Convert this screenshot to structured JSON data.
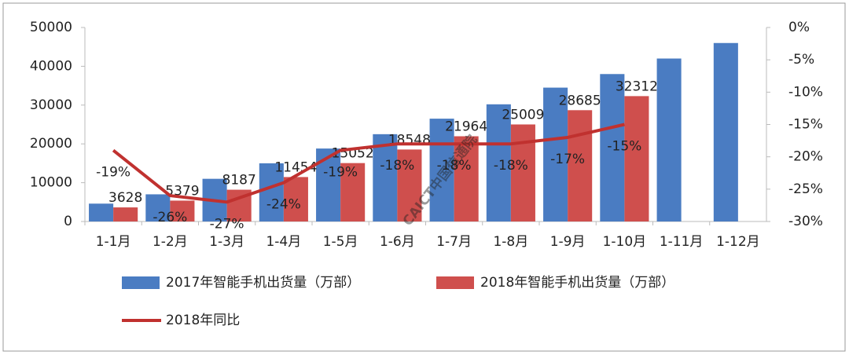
{
  "chart_data": {
    "type": "bar_line",
    "categories": [
      "1-1月",
      "1-2月",
      "1-3月",
      "1-4月",
      "1-5月",
      "1-6月",
      "1-7月",
      "1-8月",
      "1-9月",
      "1-10月",
      "1-11月",
      "1-12月"
    ],
    "series": [
      {
        "name": "2017年智能手机出货量（万部）",
        "color": "#4a7cc2",
        "values": [
          4600,
          7000,
          11000,
          15000,
          18800,
          22500,
          26500,
          30200,
          34500,
          38000,
          42000,
          46000
        ]
      },
      {
        "name": "2018年智能手机出货量（万部）",
        "color": "#cf4f4d",
        "values": [
          3628,
          5379,
          8187,
          11454,
          15052,
          18548,
          21964,
          25009,
          28685,
          32312,
          null,
          null
        ]
      },
      {
        "name": "2018年同比",
        "color": "#c0312f",
        "axis": "y2",
        "values": [
          -19,
          -26,
          -27,
          -24,
          -19,
          -18,
          -18,
          -18,
          -17,
          -15,
          null,
          null
        ],
        "value_labels": [
          "-19%",
          "-26%",
          "-27%",
          "-24%",
          "-19%",
          "-18%",
          "-18%",
          "-18%",
          "-17%",
          "-15%",
          null,
          null
        ]
      }
    ],
    "ylim": [
      0,
      50000
    ],
    "yticks": [
      0,
      10000,
      20000,
      30000,
      40000,
      50000
    ],
    "y2lim": [
      -30,
      0
    ],
    "y2ticks": [
      {
        "value": 0,
        "label": "0%"
      },
      {
        "value": -5,
        "label": "-5%"
      },
      {
        "value": -10,
        "label": "-10%"
      },
      {
        "value": -15,
        "label": "-15%"
      },
      {
        "value": -20,
        "label": "-20%"
      },
      {
        "value": -25,
        "label": "-25%"
      },
      {
        "value": -30,
        "label": "-30%"
      }
    ],
    "watermark": "CAICT中国信通院"
  }
}
